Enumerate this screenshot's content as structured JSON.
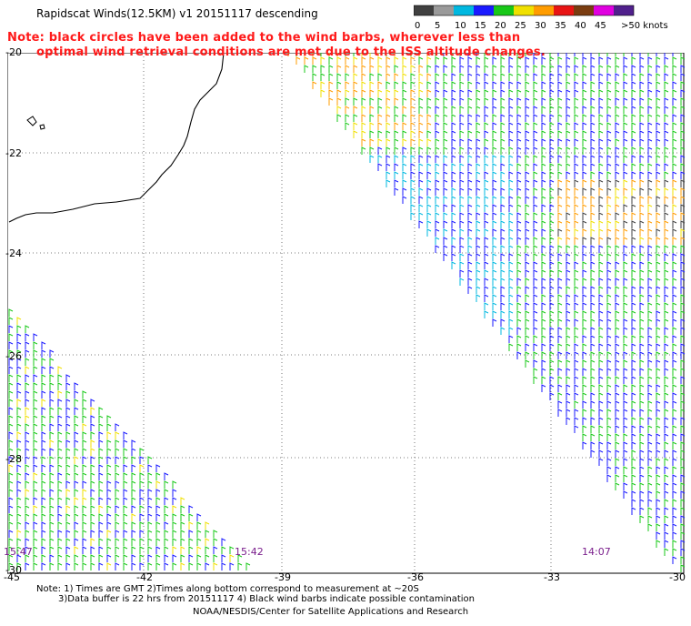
{
  "header": {
    "title": "Rapidscat Winds(12.5KM) v1 20151117 descending"
  },
  "notice": {
    "line1": "Note: black circles have been added to the wind barbs, wherever less than",
    "line2": "optimal wind retrieval conditions are met due to the ISS altitude changes."
  },
  "legend": {
    "labels": [
      "0",
      "5",
      "10",
      "15",
      "20",
      "25",
      "30",
      "35",
      "40",
      "45",
      ">50 knots"
    ],
    "colors": [
      "#404040",
      "#9a9a9a",
      "#00b8e0",
      "#1a1aff",
      "#18c818",
      "#f0e000",
      "#ff9c00",
      "#e81414",
      "#7a3c10",
      "#e000e0",
      "#50208c"
    ]
  },
  "axes": {
    "lon_labels": [
      "-45",
      "-42",
      "-39",
      "-36",
      "-33",
      "-30"
    ],
    "lat_labels": [
      "-20",
      "-22",
      "-24",
      "-26",
      "-28",
      "-30"
    ]
  },
  "pass_times": [
    "15:47",
    "15:42",
    "14:07"
  ],
  "footer": {
    "line1": "Note: 1) Times are GMT 2)Times along bottom correspond to measurement at ~20S",
    "line2": "3)Data buffer is 22 hrs from 20151117 4) Black wind barbs indicate possible contamination",
    "credit": "NOAA/NESDIS/Center for Satellite Applications and Research"
  }
}
